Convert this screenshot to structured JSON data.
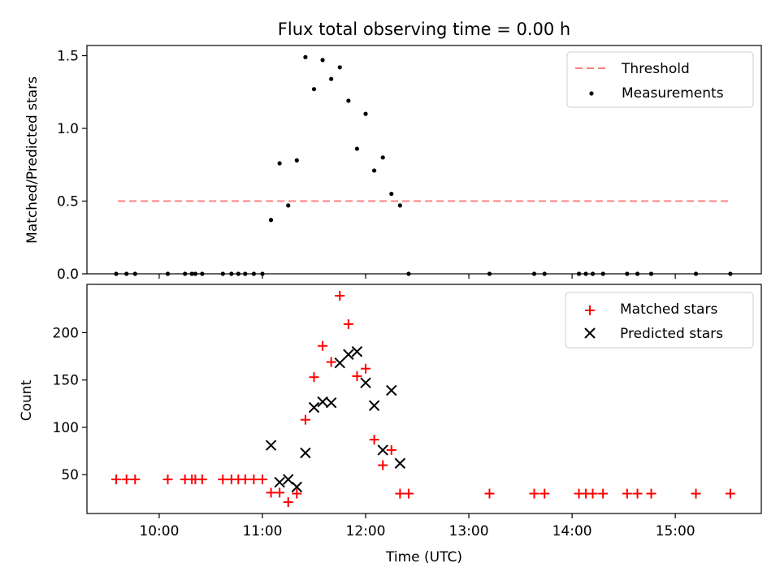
{
  "title": "Flux total observing time = 0.00 h",
  "chart_data": [
    {
      "type": "scatter",
      "ylabel": "Matched/Predicted stars",
      "xlim": [
        "09:18",
        "15:50"
      ],
      "ylim": [
        0,
        1.57
      ],
      "yticks": [
        "0.0",
        "0.5",
        "1.0",
        "1.5"
      ],
      "legend_position": "top-right",
      "threshold": {
        "name": "Threshold",
        "value": 0.5,
        "x_range": [
          "09:36",
          "15:31"
        ],
        "color": "#ff8080",
        "style": "dashed"
      },
      "series": [
        {
          "name": "Measurements",
          "marker": "dot",
          "color": "#000000",
          "points": [
            [
              "09:35",
              0
            ],
            [
              "09:41",
              0
            ],
            [
              "09:46",
              0
            ],
            [
              "10:05",
              0
            ],
            [
              "10:15",
              0
            ],
            [
              "10:19",
              0
            ],
            [
              "10:21",
              0
            ],
            [
              "10:25",
              0
            ],
            [
              "10:37",
              0
            ],
            [
              "10:42",
              0
            ],
            [
              "10:46",
              0
            ],
            [
              "10:50",
              0
            ],
            [
              "10:55",
              0
            ],
            [
              "11:00",
              0
            ],
            [
              "11:05",
              0.37
            ],
            [
              "11:10",
              0.76
            ],
            [
              "11:15",
              0.47
            ],
            [
              "11:20",
              0.78
            ],
            [
              "11:25",
              1.49
            ],
            [
              "11:30",
              1.27
            ],
            [
              "11:35",
              1.47
            ],
            [
              "11:40",
              1.34
            ],
            [
              "11:45",
              1.42
            ],
            [
              "11:50",
              1.19
            ],
            [
              "11:55",
              0.86
            ],
            [
              "12:00",
              1.1
            ],
            [
              "12:05",
              0.71
            ],
            [
              "12:10",
              0.8
            ],
            [
              "12:15",
              0.55
            ],
            [
              "12:20",
              0.47
            ],
            [
              "12:25",
              0
            ],
            [
              "13:12",
              0
            ],
            [
              "13:38",
              0
            ],
            [
              "13:44",
              0
            ],
            [
              "14:04",
              0
            ],
            [
              "14:08",
              0
            ],
            [
              "14:12",
              0
            ],
            [
              "14:18",
              0
            ],
            [
              "14:32",
              0
            ],
            [
              "14:38",
              0
            ],
            [
              "14:46",
              0
            ],
            [
              "15:12",
              0
            ],
            [
              "15:32",
              0
            ]
          ]
        }
      ]
    },
    {
      "type": "scatter",
      "xlabel": "Time (UTC)",
      "ylabel": "Count",
      "xlim": [
        "09:18",
        "15:50"
      ],
      "ylim": [
        9,
        251
      ],
      "yticks": [
        "50",
        "100",
        "150",
        "200"
      ],
      "xticks": [
        "10:00",
        "11:00",
        "12:00",
        "13:00",
        "14:00",
        "15:00"
      ],
      "legend_position": "top-right",
      "series": [
        {
          "name": "Matched stars",
          "marker": "plus",
          "color": "#ff0000",
          "points": [
            [
              "09:35",
              45
            ],
            [
              "09:41",
              45
            ],
            [
              "09:46",
              45
            ],
            [
              "10:05",
              45
            ],
            [
              "10:15",
              45
            ],
            [
              "10:19",
              45
            ],
            [
              "10:21",
              45
            ],
            [
              "10:25",
              45
            ],
            [
              "10:37",
              45
            ],
            [
              "10:42",
              45
            ],
            [
              "10:46",
              45
            ],
            [
              "10:50",
              45
            ],
            [
              "10:55",
              45
            ],
            [
              "11:00",
              45
            ],
            [
              "11:05",
              31
            ],
            [
              "11:10",
              31
            ],
            [
              "11:15",
              21
            ],
            [
              "11:20",
              30
            ],
            [
              "11:25",
              108
            ],
            [
              "11:30",
              153
            ],
            [
              "11:35",
              186
            ],
            [
              "11:40",
              169
            ],
            [
              "11:45",
              239
            ],
            [
              "11:50",
              209
            ],
            [
              "11:55",
              154
            ],
            [
              "12:00",
              162
            ],
            [
              "12:05",
              87
            ],
            [
              "12:10",
              60
            ],
            [
              "12:15",
              76
            ],
            [
              "12:20",
              30
            ],
            [
              "12:25",
              30
            ],
            [
              "13:12",
              30
            ],
            [
              "13:38",
              30
            ],
            [
              "13:44",
              30
            ],
            [
              "14:04",
              30
            ],
            [
              "14:08",
              30
            ],
            [
              "14:12",
              30
            ],
            [
              "14:18",
              30
            ],
            [
              "14:32",
              30
            ],
            [
              "14:38",
              30
            ],
            [
              "14:46",
              30
            ],
            [
              "15:12",
              30
            ],
            [
              "15:32",
              30
            ]
          ]
        },
        {
          "name": "Predicted stars",
          "marker": "x",
          "color": "#000000",
          "points": [
            [
              "11:05",
              81
            ],
            [
              "11:10",
              42
            ],
            [
              "11:15",
              45
            ],
            [
              "11:20",
              37
            ],
            [
              "11:25",
              73
            ],
            [
              "11:30",
              121
            ],
            [
              "11:35",
              127
            ],
            [
              "11:40",
              126
            ],
            [
              "11:45",
              168
            ],
            [
              "11:50",
              177
            ],
            [
              "11:55",
              180
            ],
            [
              "12:00",
              147
            ],
            [
              "12:05",
              123
            ],
            [
              "12:10",
              76
            ],
            [
              "12:15",
              139
            ],
            [
              "12:20",
              62
            ]
          ]
        }
      ]
    }
  ]
}
